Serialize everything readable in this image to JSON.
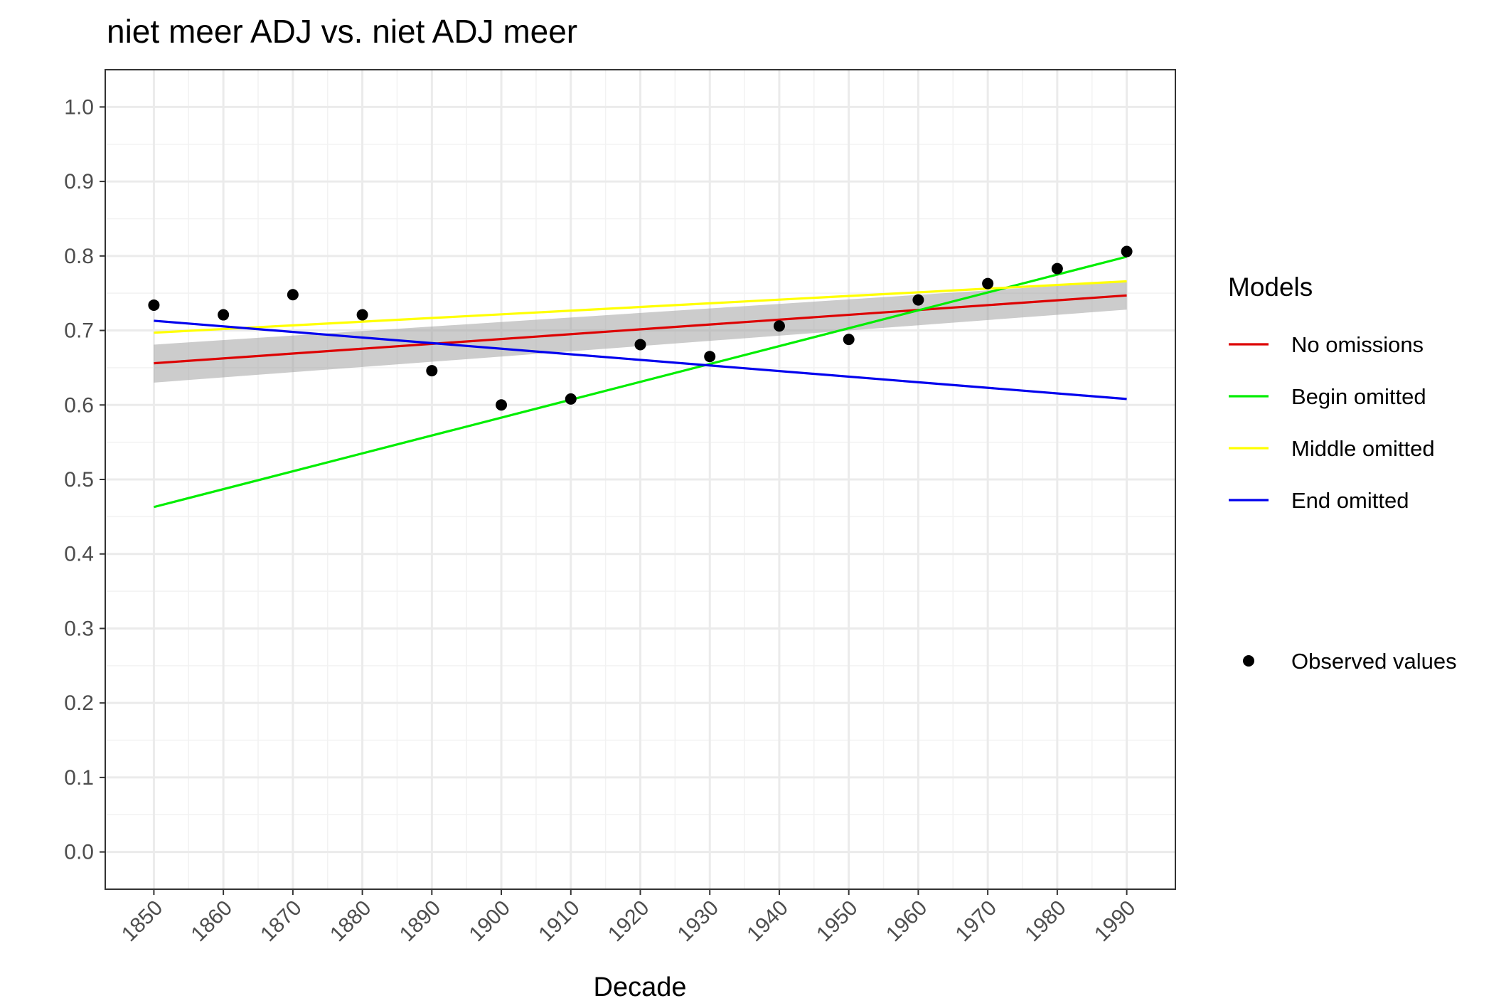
{
  "chart_data": {
    "type": "line",
    "title": "niet meer ADJ vs. niet ADJ meer",
    "xlabel": "Decade",
    "ylabel": "",
    "x": [
      1850,
      1860,
      1870,
      1880,
      1890,
      1900,
      1910,
      1920,
      1930,
      1940,
      1950,
      1960,
      1970,
      1980,
      1990
    ],
    "xlim": [
      1843,
      1997
    ],
    "ylim": [
      -0.05,
      1.05
    ],
    "xticks": [
      "1850",
      "1860",
      "1870",
      "1880",
      "1890",
      "1900",
      "1910",
      "1920",
      "1930",
      "1940",
      "1950",
      "1960",
      "1970",
      "1980",
      "1990"
    ],
    "yticks": [
      "0.0",
      "0.1",
      "0.2",
      "0.3",
      "0.4",
      "0.5",
      "0.6",
      "0.7",
      "0.8",
      "0.9",
      "1.0"
    ],
    "grid": true,
    "legend_position": "right",
    "legend_title": "Models",
    "observed": {
      "name": "Observed values",
      "color": "#000000",
      "values": [
        0.734,
        0.721,
        0.748,
        0.721,
        0.646,
        0.6,
        0.608,
        0.681,
        0.665,
        0.706,
        0.688,
        0.741,
        0.763,
        0.783,
        0.806
      ]
    },
    "series": [
      {
        "name": "No omissions",
        "color": "#dd0000",
        "x": [
          1850,
          1990
        ],
        "y": [
          0.656,
          0.747
        ],
        "ci_lower": [
          0.63,
          0.728
        ],
        "ci_upper": [
          0.681,
          0.766
        ]
      },
      {
        "name": "Begin omitted",
        "color": "#00ee00",
        "x": [
          1850,
          1990
        ],
        "y": [
          0.463,
          0.799
        ]
      },
      {
        "name": "Middle omitted",
        "color": "#ffff00",
        "x": [
          1850,
          1990
        ],
        "y": [
          0.697,
          0.766
        ]
      },
      {
        "name": "End omitted",
        "color": "#0000ee",
        "x": [
          1850,
          1990
        ],
        "y": [
          0.713,
          0.608
        ]
      }
    ],
    "ci_color": "#999999"
  }
}
